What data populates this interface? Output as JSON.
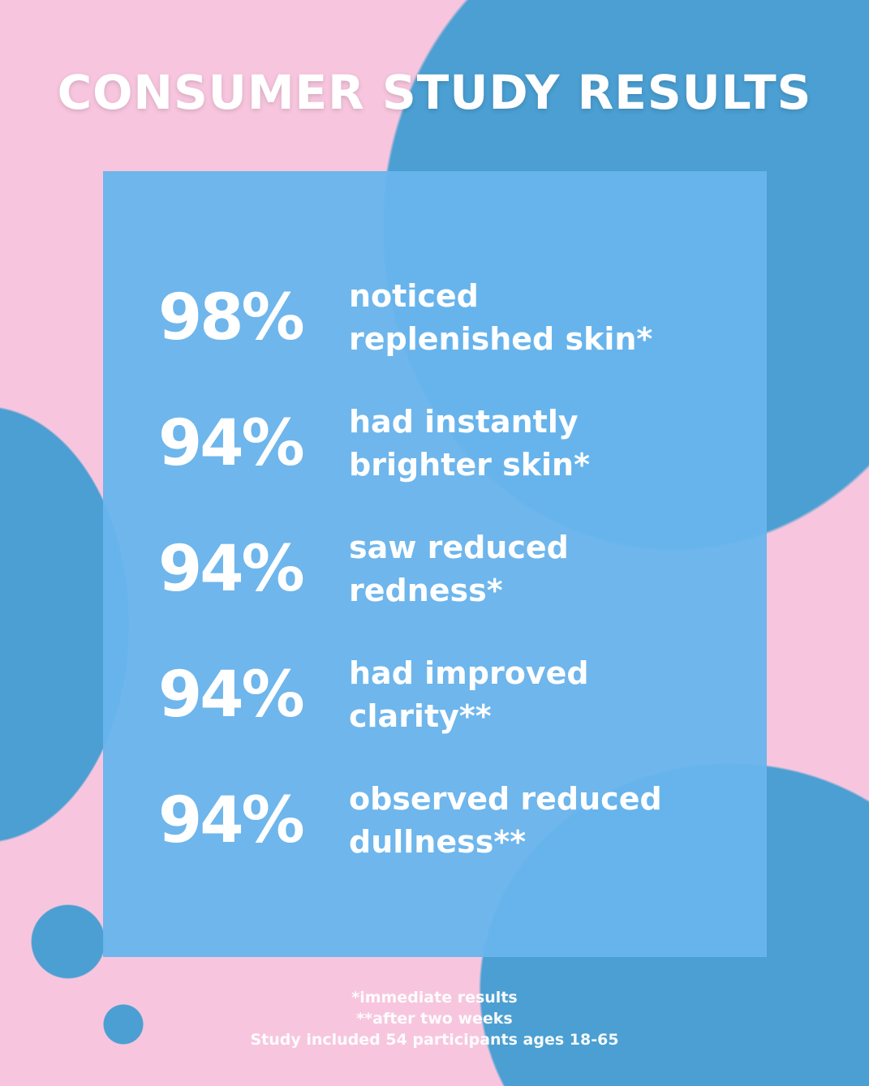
{
  "colors": {
    "background": "#f7c6de",
    "blob": "#4b9fd2",
    "panel": "#68b5ec",
    "text": "#ffffff"
  },
  "title": "CONSUMER STUDY RESULTS",
  "stats": [
    {
      "value": "98%",
      "line1": "noticed",
      "line2": "replenished skin*"
    },
    {
      "value": "94%",
      "line1": "had instantly",
      "line2": "brighter skin*"
    },
    {
      "value": "94%",
      "line1": "saw reduced",
      "line2": "redness*"
    },
    {
      "value": "94%",
      "line1": "had improved",
      "line2": "clarity**"
    },
    {
      "value": "94%",
      "line1": "observed reduced",
      "line2": "dullness**"
    }
  ],
  "footnotes": [
    "*immediate results",
    "**after two weeks",
    "Study included 54 participants ages 18-65"
  ]
}
